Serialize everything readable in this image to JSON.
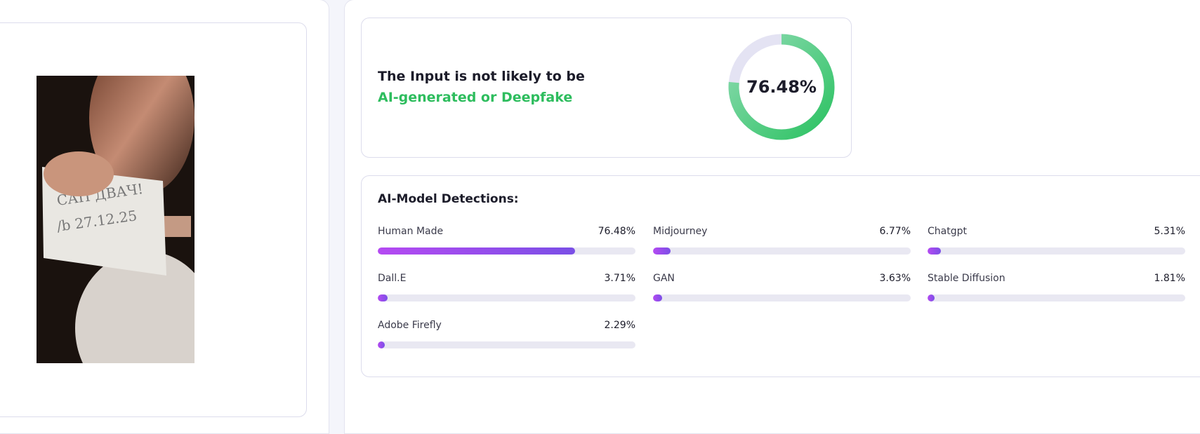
{
  "image": {
    "note_lines": [
      "САП ДВАЧ!",
      "/b 27.12.25"
    ]
  },
  "result": {
    "line1": "The Input is not likely to be",
    "line2": "AI-generated or Deepfake",
    "score": 76.48,
    "score_label": "76.48%"
  },
  "detections": {
    "title": "AI-Model Detections:",
    "items": [
      {
        "name": "Human Made",
        "value": 76.48,
        "label": "76.48%"
      },
      {
        "name": "Midjourney",
        "value": 6.77,
        "label": "6.77%"
      },
      {
        "name": "Chatgpt",
        "value": 5.31,
        "label": "5.31%"
      },
      {
        "name": "Dall.E",
        "value": 3.71,
        "label": "3.71%"
      },
      {
        "name": "GAN",
        "value": 3.63,
        "label": "3.63%"
      },
      {
        "name": "Stable Diffusion",
        "value": 1.81,
        "label": "1.81%"
      },
      {
        "name": "Adobe Firefly",
        "value": 2.29,
        "label": "2.29%"
      }
    ]
  }
}
